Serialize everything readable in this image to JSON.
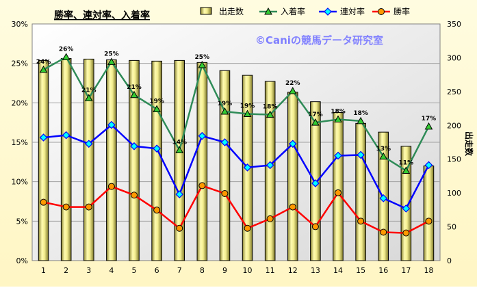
{
  "chart_data": {
    "type": "bar",
    "title": "勝率、連対率、入着率",
    "watermark": "©Caniの競馬データ研究室",
    "categories": [
      "1",
      "2",
      "3",
      "4",
      "5",
      "6",
      "7",
      "8",
      "9",
      "10",
      "11",
      "12",
      "13",
      "14",
      "15",
      "16",
      "17",
      "18"
    ],
    "y_left": {
      "ticks": [
        "0%",
        "5%",
        "10%",
        "15%",
        "20%",
        "25%",
        "30%"
      ],
      "ylim": [
        0,
        30
      ]
    },
    "y_right": {
      "label": "出走数",
      "ticks": [
        "0",
        "50",
        "100",
        "150",
        "200",
        "250",
        "300",
        "350"
      ],
      "ylim": [
        0,
        350
      ]
    },
    "grid": true,
    "legend_position": "top",
    "series": [
      {
        "name": "出走数",
        "type": "bar",
        "axis": "right",
        "color": "#E4E07A",
        "values": [
          296,
          299,
          298,
          297,
          296,
          295,
          296,
          293,
          281,
          274,
          265,
          249,
          235,
          219,
          203,
          190,
          169,
          140
        ]
      },
      {
        "name": "入着率",
        "type": "line",
        "axis": "left",
        "color": "#2E8B57",
        "marker": "triangle",
        "values": [
          24.2,
          25.8,
          20.6,
          25.2,
          21.0,
          19.2,
          14.0,
          24.8,
          18.9,
          18.6,
          18.5,
          21.5,
          17.5,
          17.9,
          17.7,
          13.2,
          11.4,
          17.0
        ],
        "data_labels": [
          "24%",
          "26%",
          "21%",
          "25%",
          "21%",
          "19%",
          "14%",
          "25%",
          "19%",
          "19%",
          "18%",
          "22%",
          "17%",
          "18%",
          "18%",
          "13%",
          "11%",
          "17%"
        ]
      },
      {
        "name": "連対率",
        "type": "line",
        "axis": "left",
        "color": "#0000FF",
        "marker": "diamond",
        "values": [
          15.6,
          15.9,
          14.8,
          17.2,
          14.5,
          14.2,
          8.4,
          15.8,
          15.0,
          11.8,
          12.1,
          14.8,
          9.8,
          13.3,
          13.4,
          7.9,
          6.6,
          12.1
        ]
      },
      {
        "name": "勝率",
        "type": "line",
        "axis": "left",
        "color": "#FF0000",
        "marker": "circle",
        "values": [
          7.4,
          6.8,
          6.8,
          9.4,
          8.3,
          6.4,
          4.1,
          9.5,
          8.5,
          4.1,
          5.3,
          6.8,
          4.3,
          8.6,
          5.0,
          3.6,
          3.5,
          5.0
        ]
      }
    ]
  }
}
